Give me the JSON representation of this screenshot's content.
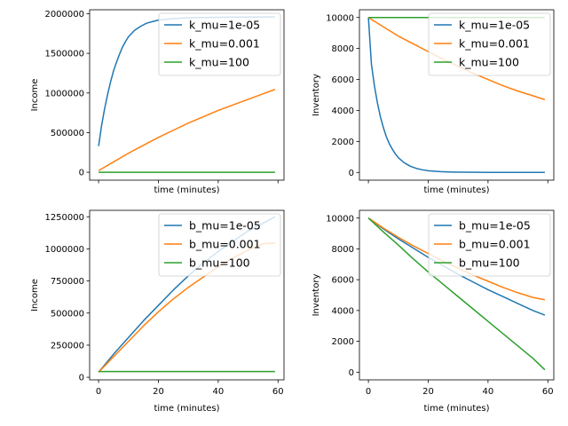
{
  "chart_data": [
    {
      "type": "line",
      "xlabel": "time (minutes)",
      "ylabel": "Income",
      "xlim": [
        -3,
        62
      ],
      "ylim": [
        -100000,
        2050000
      ],
      "xticks": [
        0,
        20,
        40,
        60
      ],
      "show_xticklabels": false,
      "yticks": [
        0,
        500000,
        1000000,
        1500000,
        2000000
      ],
      "ytick_labels": [
        "0",
        "500000",
        "1000000",
        "1500000",
        "2000000"
      ],
      "legend": "top-right",
      "series": [
        {
          "name": "k_mu=1e-05",
          "color": "#1f77b4",
          "x": [
            0,
            1,
            2,
            3,
            4,
            5,
            6,
            7,
            8,
            9,
            10,
            12,
            14,
            16,
            18,
            20,
            24,
            28,
            32,
            36,
            40,
            45,
            50,
            55,
            59
          ],
          "y": [
            330000,
            590000,
            800000,
            980000,
            1140000,
            1280000,
            1390000,
            1490000,
            1580000,
            1650000,
            1710000,
            1790000,
            1840000,
            1880000,
            1900000,
            1920000,
            1935000,
            1945000,
            1950000,
            1952000,
            1955000,
            1957000,
            1958000,
            1959000,
            1960000
          ]
        },
        {
          "name": "k_mu=0.001",
          "color": "#ff7f0e",
          "x": [
            0,
            5,
            10,
            15,
            20,
            25,
            30,
            35,
            40,
            45,
            50,
            55,
            59
          ],
          "y": [
            20000,
            130000,
            240000,
            340000,
            440000,
            530000,
            620000,
            700000,
            780000,
            850000,
            920000,
            990000,
            1045000
          ]
        },
        {
          "name": "k_mu=100",
          "color": "#2ca02c",
          "x": [
            0,
            59
          ],
          "y": [
            0,
            0
          ]
        }
      ]
    },
    {
      "type": "line",
      "xlabel": "time (minutes)",
      "ylabel": "Inventory",
      "xlim": [
        -3,
        62
      ],
      "ylim": [
        -500,
        10500
      ],
      "xticks": [
        0,
        20,
        40,
        60
      ],
      "show_xticklabels": false,
      "yticks": [
        0,
        2000,
        4000,
        6000,
        8000,
        10000
      ],
      "ytick_labels": [
        "0",
        "2000",
        "4000",
        "6000",
        "8000",
        "10000"
      ],
      "legend": "top-right",
      "series": [
        {
          "name": "k_mu=1e-05",
          "color": "#1f77b4",
          "x": [
            0,
            1,
            2,
            3,
            4,
            5,
            6,
            7,
            8,
            9,
            10,
            12,
            14,
            16,
            18,
            20,
            24,
            28,
            32,
            36,
            40,
            45,
            50,
            55,
            59
          ],
          "y": [
            10000,
            7000,
            5600,
            4500,
            3600,
            2900,
            2300,
            1850,
            1500,
            1200,
            950,
            620,
            400,
            260,
            170,
            110,
            50,
            25,
            12,
            6,
            3,
            1,
            0,
            0,
            0
          ]
        },
        {
          "name": "k_mu=0.001",
          "color": "#ff7f0e",
          "x": [
            0,
            5,
            10,
            15,
            20,
            25,
            30,
            35,
            40,
            45,
            50,
            55,
            59
          ],
          "y": [
            10000,
            9400,
            8800,
            8300,
            7800,
            7300,
            6850,
            6400,
            6000,
            5600,
            5250,
            4950,
            4700
          ]
        },
        {
          "name": "k_mu=100",
          "color": "#2ca02c",
          "x": [
            0,
            59
          ],
          "y": [
            10000,
            10000
          ]
        }
      ]
    },
    {
      "type": "line",
      "xlabel": "time (minutes)",
      "ylabel": "Income",
      "xlim": [
        -3,
        62
      ],
      "ylim": [
        -20000,
        1300000
      ],
      "xticks": [
        0,
        20,
        40,
        60
      ],
      "xtick_labels": [
        "0",
        "20",
        "40",
        "60"
      ],
      "show_xticklabels": true,
      "yticks": [
        0,
        250000,
        500000,
        750000,
        1000000,
        1250000
      ],
      "ytick_labels": [
        "0",
        "250000",
        "500000",
        "750000",
        "1000000",
        "1250000"
      ],
      "legend": "top-right",
      "series": [
        {
          "name": "b_mu=1e-05",
          "color": "#1f77b4",
          "x": [
            0,
            5,
            10,
            15,
            20,
            25,
            30,
            35,
            40,
            45,
            50,
            55,
            59
          ],
          "y": [
            40000,
            180000,
            310000,
            440000,
            560000,
            680000,
            790000,
            890000,
            980000,
            1060000,
            1140000,
            1200000,
            1250000
          ]
        },
        {
          "name": "b_mu=0.001",
          "color": "#ff7f0e",
          "x": [
            0,
            5,
            10,
            15,
            20,
            25,
            30,
            35,
            40,
            45,
            50,
            55,
            59
          ],
          "y": [
            40000,
            160000,
            280000,
            400000,
            510000,
            610000,
            700000,
            780000,
            860000,
            930000,
            990000,
            1040000,
            1045000
          ]
        },
        {
          "name": "b_mu=100",
          "color": "#2ca02c",
          "x": [
            0,
            59
          ],
          "y": [
            45000,
            45000
          ]
        }
      ]
    },
    {
      "type": "line",
      "xlabel": "time (minutes)",
      "ylabel": "Inventory",
      "xlim": [
        -3,
        62
      ],
      "ylim": [
        -500,
        10500
      ],
      "xticks": [
        0,
        20,
        40,
        60
      ],
      "xtick_labels": [
        "0",
        "20",
        "40",
        "60"
      ],
      "show_xticklabels": true,
      "yticks": [
        0,
        2000,
        4000,
        6000,
        8000,
        10000
      ],
      "ytick_labels": [
        "0",
        "2000",
        "4000",
        "6000",
        "8000",
        "10000"
      ],
      "legend": "top-right",
      "series": [
        {
          "name": "b_mu=1e-05",
          "color": "#1f77b4",
          "x": [
            0,
            5,
            10,
            15,
            20,
            25,
            30,
            35,
            40,
            45,
            50,
            55,
            59
          ],
          "y": [
            10000,
            9300,
            8650,
            8050,
            7450,
            6900,
            6350,
            5850,
            5350,
            4900,
            4450,
            4000,
            3700
          ]
        },
        {
          "name": "b_mu=0.001",
          "color": "#ff7f0e",
          "x": [
            0,
            5,
            10,
            15,
            20,
            25,
            30,
            35,
            40,
            45,
            50,
            55,
            59
          ],
          "y": [
            10000,
            9350,
            8750,
            8200,
            7700,
            7200,
            6750,
            6300,
            5900,
            5500,
            5150,
            4850,
            4700
          ]
        },
        {
          "name": "b_mu=100",
          "color": "#2ca02c",
          "x": [
            0,
            5,
            10,
            15,
            20,
            25,
            30,
            35,
            40,
            45,
            50,
            55,
            59
          ],
          "y": [
            10000,
            9100,
            8250,
            7350,
            6500,
            5700,
            4900,
            4100,
            3300,
            2500,
            1700,
            900,
            150
          ]
        }
      ]
    }
  ]
}
